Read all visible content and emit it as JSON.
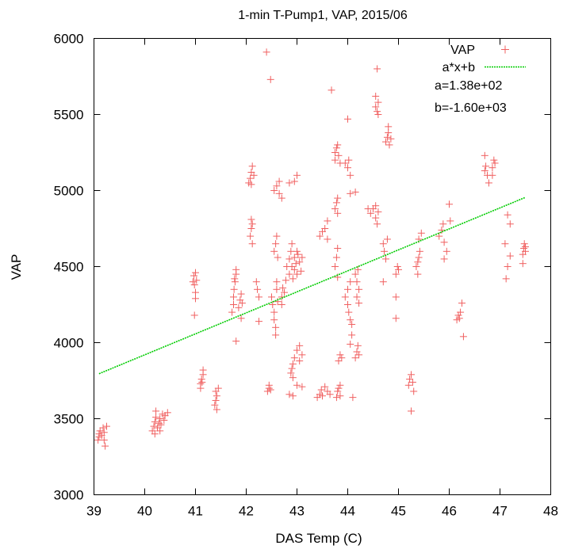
{
  "chart_data": {
    "type": "scatter",
    "title": "1-min T-Pump1, VAP, 2015/06",
    "xlabel": "DAS Temp (C)",
    "ylabel": "VAP",
    "xlim": [
      39,
      48
    ],
    "ylim": [
      3000,
      6000
    ],
    "xticks": [
      39,
      40,
      41,
      42,
      43,
      44,
      45,
      46,
      47,
      48
    ],
    "yticks": [
      3000,
      3500,
      4000,
      4500,
      5000,
      5500,
      6000
    ],
    "xtick_labels": [
      "39",
      "40",
      "41",
      "42",
      "43",
      "44",
      "45",
      "46",
      "47",
      "48"
    ],
    "ytick_labels": [
      "3000",
      "3500",
      "4000",
      "4500",
      "5000",
      "5500",
      "6000"
    ],
    "grid": false,
    "legend_position": "top-right",
    "series": [
      {
        "name": "VAP",
        "kind": "scatter",
        "marker": "plus",
        "color": "#f06060",
        "points": [
          [
            39.1,
            3380
          ],
          [
            39.1,
            3400
          ],
          [
            39.12,
            3420
          ],
          [
            39.15,
            3390
          ],
          [
            39.18,
            3440
          ],
          [
            39.2,
            3410
          ],
          [
            39.2,
            3360
          ],
          [
            39.22,
            3320
          ],
          [
            39.25,
            3450
          ],
          [
            39.08,
            3360
          ],
          [
            40.15,
            3420
          ],
          [
            40.18,
            3450
          ],
          [
            40.2,
            3480
          ],
          [
            40.2,
            3400
          ],
          [
            40.22,
            3510
          ],
          [
            40.25,
            3440
          ],
          [
            40.28,
            3470
          ],
          [
            40.3,
            3500
          ],
          [
            40.32,
            3460
          ],
          [
            40.35,
            3530
          ],
          [
            40.38,
            3490
          ],
          [
            40.4,
            3520
          ],
          [
            40.22,
            3550
          ],
          [
            40.3,
            3420
          ],
          [
            40.45,
            3540
          ],
          [
            40.95,
            4400
          ],
          [
            40.97,
            4440
          ],
          [
            40.98,
            4380
          ],
          [
            41.0,
            4460
          ],
          [
            41.0,
            4330
          ],
          [
            41.02,
            4410
          ],
          [
            41.0,
            4290
          ],
          [
            40.98,
            4180
          ],
          [
            41.1,
            3730
          ],
          [
            41.12,
            3760
          ],
          [
            41.15,
            3790
          ],
          [
            41.13,
            3740
          ],
          [
            41.1,
            3700
          ],
          [
            41.15,
            3820
          ],
          [
            41.38,
            3590
          ],
          [
            41.4,
            3620
          ],
          [
            41.42,
            3650
          ],
          [
            41.4,
            3680
          ],
          [
            41.45,
            3700
          ],
          [
            41.42,
            3560
          ],
          [
            41.72,
            4200
          ],
          [
            41.75,
            4250
          ],
          [
            41.75,
            4300
          ],
          [
            41.76,
            4350
          ],
          [
            41.78,
            4400
          ],
          [
            41.8,
            4450
          ],
          [
            41.8,
            4480
          ],
          [
            41.77,
            4420
          ],
          [
            41.8,
            4010
          ],
          [
            41.85,
            4230
          ],
          [
            41.88,
            4280
          ],
          [
            41.9,
            4320
          ],
          [
            41.9,
            4160
          ],
          [
            41.92,
            4260
          ],
          [
            42.08,
            4700
          ],
          [
            42.1,
            4750
          ],
          [
            42.12,
            4780
          ],
          [
            42.1,
            4810
          ],
          [
            42.12,
            4650
          ],
          [
            42.05,
            5050
          ],
          [
            42.08,
            5080
          ],
          [
            42.1,
            5120
          ],
          [
            42.12,
            5160
          ],
          [
            42.15,
            5100
          ],
          [
            42.1,
            5040
          ],
          [
            42.2,
            4400
          ],
          [
            42.22,
            4350
          ],
          [
            42.25,
            4300
          ],
          [
            42.25,
            4140
          ],
          [
            42.42,
            3680
          ],
          [
            42.45,
            3700
          ],
          [
            42.45,
            3720
          ],
          [
            42.48,
            3690
          ],
          [
            42.4,
            5910
          ],
          [
            42.48,
            5730
          ],
          [
            42.5,
            4300
          ],
          [
            42.52,
            4250
          ],
          [
            42.55,
            4200
          ],
          [
            42.55,
            4150
          ],
          [
            42.58,
            4100
          ],
          [
            42.6,
            4350
          ],
          [
            42.6,
            4400
          ],
          [
            42.62,
            4270
          ],
          [
            42.58,
            4050
          ],
          [
            42.55,
            4600
          ],
          [
            42.58,
            4650
          ],
          [
            42.6,
            4700
          ],
          [
            42.62,
            4560
          ],
          [
            42.55,
            5000
          ],
          [
            42.6,
            5030
          ],
          [
            42.65,
            4980
          ],
          [
            42.7,
            4950
          ],
          [
            42.65,
            5060
          ],
          [
            42.7,
            4300
          ],
          [
            42.72,
            4360
          ],
          [
            42.75,
            4330
          ],
          [
            42.78,
            4410
          ],
          [
            42.7,
            4250
          ],
          [
            42.8,
            4500
          ],
          [
            42.85,
            4550
          ],
          [
            42.85,
            4450
          ],
          [
            42.88,
            4600
          ],
          [
            42.9,
            4650
          ],
          [
            42.9,
            4500
          ],
          [
            42.92,
            4420
          ],
          [
            42.95,
            4480
          ],
          [
            42.95,
            4560
          ],
          [
            42.98,
            4520
          ],
          [
            43.0,
            4450
          ],
          [
            43.0,
            4600
          ],
          [
            43.02,
            4580
          ],
          [
            43.05,
            4530
          ],
          [
            43.08,
            4470
          ],
          [
            43.1,
            4560
          ],
          [
            42.85,
            5050
          ],
          [
            42.95,
            5060
          ],
          [
            43.0,
            5100
          ],
          [
            42.88,
            3800
          ],
          [
            42.9,
            3830
          ],
          [
            42.92,
            3860
          ],
          [
            42.92,
            3770
          ],
          [
            42.95,
            3900
          ],
          [
            43.0,
            3950
          ],
          [
            43.05,
            3980
          ],
          [
            43.05,
            3880
          ],
          [
            43.1,
            3920
          ],
          [
            43.0,
            3720
          ],
          [
            43.1,
            3710
          ],
          [
            42.85,
            3660
          ],
          [
            42.92,
            3650
          ],
          [
            43.4,
            3640
          ],
          [
            43.45,
            3660
          ],
          [
            43.48,
            3690
          ],
          [
            43.5,
            3650
          ],
          [
            43.55,
            3710
          ],
          [
            43.6,
            3680
          ],
          [
            43.65,
            3660
          ],
          [
            43.45,
            4700
          ],
          [
            43.5,
            4730
          ],
          [
            43.55,
            4750
          ],
          [
            43.6,
            4680
          ],
          [
            43.6,
            4800
          ],
          [
            43.68,
            5660
          ],
          [
            43.75,
            5200
          ],
          [
            43.75,
            5250
          ],
          [
            43.78,
            5280
          ],
          [
            43.8,
            5300
          ],
          [
            43.82,
            5230
          ],
          [
            43.85,
            5180
          ],
          [
            43.75,
            4880
          ],
          [
            43.78,
            4920
          ],
          [
            43.8,
            4950
          ],
          [
            43.8,
            4850
          ],
          [
            43.75,
            4500
          ],
          [
            43.78,
            4560
          ],
          [
            43.8,
            4620
          ],
          [
            43.8,
            4430
          ],
          [
            43.78,
            3640
          ],
          [
            43.8,
            3680
          ],
          [
            43.82,
            3700
          ],
          [
            43.85,
            3650
          ],
          [
            43.85,
            3720
          ],
          [
            43.82,
            3880
          ],
          [
            43.85,
            3920
          ],
          [
            43.88,
            3900
          ],
          [
            43.95,
            5180
          ],
          [
            44.0,
            5150
          ],
          [
            44.02,
            5200
          ],
          [
            44.05,
            5100
          ],
          [
            44.0,
            5470
          ],
          [
            44.05,
            4980
          ],
          [
            43.95,
            4300
          ],
          [
            44.0,
            4250
          ],
          [
            44.02,
            4200
          ],
          [
            44.05,
            4150
          ],
          [
            44.0,
            4350
          ],
          [
            44.08,
            4120
          ],
          [
            44.05,
            3990
          ],
          [
            44.05,
            4400
          ],
          [
            44.08,
            4050
          ],
          [
            44.15,
            4450
          ],
          [
            44.18,
            4400
          ],
          [
            44.2,
            4480
          ],
          [
            44.22,
            4350
          ],
          [
            44.18,
            4300
          ],
          [
            44.22,
            4260
          ],
          [
            44.15,
            3900
          ],
          [
            44.18,
            3940
          ],
          [
            44.2,
            3980
          ],
          [
            44.22,
            3920
          ],
          [
            44.1,
            3640
          ],
          [
            44.15,
            4990
          ],
          [
            44.45,
            4850
          ],
          [
            44.5,
            4880
          ],
          [
            44.55,
            4900
          ],
          [
            44.55,
            4820
          ],
          [
            44.58,
            4780
          ],
          [
            44.6,
            4860
          ],
          [
            44.4,
            4880
          ],
          [
            44.55,
            5550
          ],
          [
            44.58,
            5520
          ],
          [
            44.6,
            5580
          ],
          [
            44.6,
            5500
          ],
          [
            44.58,
            5800
          ],
          [
            44.55,
            5620
          ],
          [
            44.75,
            5320
          ],
          [
            44.78,
            5350
          ],
          [
            44.8,
            5380
          ],
          [
            44.82,
            5300
          ],
          [
            44.85,
            5340
          ],
          [
            44.8,
            5420
          ],
          [
            44.7,
            4650
          ],
          [
            44.72,
            4600
          ],
          [
            44.75,
            4550
          ],
          [
            44.78,
            4680
          ],
          [
            44.7,
            4400
          ],
          [
            44.95,
            4450
          ],
          [
            44.98,
            4500
          ],
          [
            45.0,
            4480
          ],
          [
            44.95,
            4300
          ],
          [
            44.95,
            4160
          ],
          [
            45.2,
            3720
          ],
          [
            45.22,
            3760
          ],
          [
            45.25,
            3790
          ],
          [
            45.28,
            3740
          ],
          [
            45.3,
            3680
          ],
          [
            45.25,
            3550
          ],
          [
            45.35,
            4500
          ],
          [
            45.38,
            4530
          ],
          [
            45.4,
            4560
          ],
          [
            45.42,
            4600
          ],
          [
            45.4,
            4680
          ],
          [
            45.38,
            4450
          ],
          [
            45.45,
            4720
          ],
          [
            45.8,
            4700
          ],
          [
            45.85,
            4740
          ],
          [
            45.88,
            4780
          ],
          [
            45.9,
            4660
          ],
          [
            45.95,
            4600
          ],
          [
            45.9,
            4550
          ],
          [
            46.0,
            4910
          ],
          [
            46.02,
            4800
          ],
          [
            46.15,
            4150
          ],
          [
            46.18,
            4180
          ],
          [
            46.2,
            4160
          ],
          [
            46.22,
            4200
          ],
          [
            46.25,
            4260
          ],
          [
            46.28,
            4040
          ],
          [
            46.7,
            5130
          ],
          [
            46.72,
            5160
          ],
          [
            46.75,
            5100
          ],
          [
            46.78,
            5050
          ],
          [
            46.7,
            5230
          ],
          [
            46.85,
            5150
          ],
          [
            46.88,
            5200
          ],
          [
            46.9,
            5180
          ],
          [
            46.85,
            5100
          ],
          [
            47.1,
            4650
          ],
          [
            47.15,
            4500
          ],
          [
            47.2,
            4570
          ],
          [
            47.2,
            4780
          ],
          [
            47.15,
            4840
          ],
          [
            47.12,
            4420
          ],
          [
            47.45,
            4580
          ],
          [
            47.47,
            4620
          ],
          [
            47.48,
            4650
          ],
          [
            47.5,
            4600
          ],
          [
            47.5,
            4630
          ],
          [
            47.45,
            4520
          ]
        ]
      },
      {
        "name": "a*x+b",
        "kind": "line",
        "color": "#00cc00",
        "a": 138,
        "b": -1600,
        "x_range": [
          39.1,
          47.5
        ]
      }
    ],
    "annotations": [
      "a=1.38e+02",
      "b=-1.60e+03"
    ]
  }
}
